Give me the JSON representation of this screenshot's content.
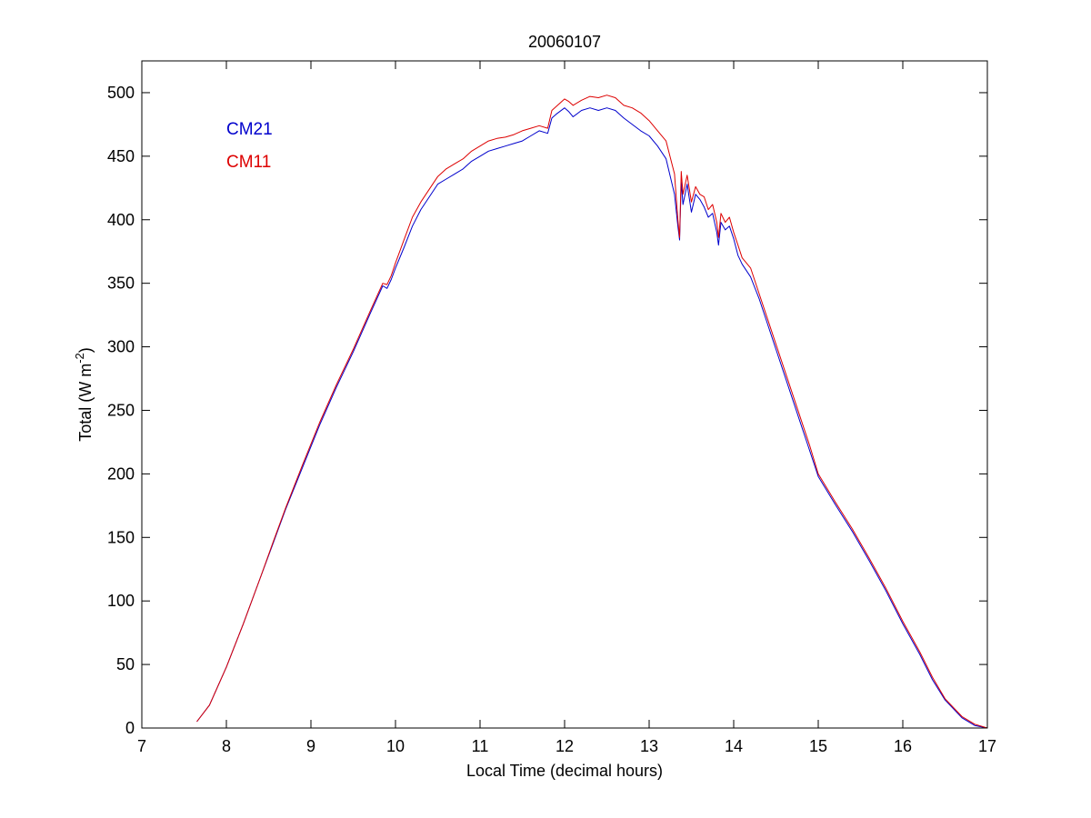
{
  "chart_data": {
    "type": "line",
    "title": "20060107",
    "xlabel": "Local Time (decimal hours)",
    "ylabel": "Total (W m",
    "ylabel_superscript": "-2",
    "ylabel_suffix": ")",
    "xlim": [
      7,
      17
    ],
    "ylim": [
      0,
      525
    ],
    "xticks": [
      7,
      8,
      9,
      10,
      11,
      12,
      13,
      14,
      15,
      16,
      17
    ],
    "yticks": [
      0,
      50,
      100,
      150,
      200,
      250,
      300,
      350,
      400,
      450,
      500
    ],
    "grid": false,
    "legend_position": "top-left",
    "series": [
      {
        "name": "CM21",
        "color": "#0000cc",
        "x": [
          7.65,
          7.8,
          8.0,
          8.2,
          8.4,
          8.55,
          8.7,
          8.9,
          9.1,
          9.3,
          9.5,
          9.7,
          9.85,
          9.9,
          9.95,
          10.0,
          10.1,
          10.2,
          10.3,
          10.4,
          10.5,
          10.6,
          10.7,
          10.8,
          10.9,
          11.0,
          11.1,
          11.2,
          11.3,
          11.4,
          11.5,
          11.6,
          11.7,
          11.8,
          11.85,
          11.9,
          12.0,
          12.05,
          12.1,
          12.2,
          12.3,
          12.4,
          12.5,
          12.6,
          12.7,
          12.8,
          12.9,
          13.0,
          13.1,
          13.2,
          13.3,
          13.34,
          13.36,
          13.38,
          13.4,
          13.45,
          13.5,
          13.55,
          13.6,
          13.65,
          13.7,
          13.75,
          13.8,
          13.82,
          13.85,
          13.9,
          13.95,
          14.0,
          14.05,
          14.1,
          14.2,
          14.3,
          14.4,
          14.5,
          14.6,
          14.7,
          14.8,
          14.9,
          15.0,
          15.2,
          15.4,
          15.6,
          15.8,
          16.0,
          16.2,
          16.35,
          16.5,
          16.7,
          16.85,
          17.0
        ],
        "y": [
          5,
          18,
          48,
          82,
          118,
          145,
          172,
          205,
          238,
          268,
          296,
          326,
          348,
          346,
          353,
          362,
          378,
          395,
          408,
          418,
          428,
          432,
          436,
          440,
          446,
          450,
          454,
          456,
          458,
          460,
          462,
          466,
          470,
          468,
          480,
          483,
          488,
          485,
          481,
          486,
          488,
          486,
          488,
          486,
          480,
          475,
          470,
          466,
          458,
          448,
          420,
          395,
          384,
          430,
          412,
          428,
          406,
          420,
          416,
          410,
          402,
          405,
          390,
          380,
          398,
          392,
          395,
          385,
          372,
          365,
          355,
          338,
          318,
          298,
          278,
          258,
          238,
          218,
          198,
          176,
          155,
          132,
          108,
          82,
          58,
          38,
          22,
          8,
          2,
          0
        ]
      },
      {
        "name": "CM11",
        "color": "#dd0000",
        "x": [
          7.65,
          7.8,
          8.0,
          8.2,
          8.4,
          8.55,
          8.7,
          8.9,
          9.1,
          9.3,
          9.5,
          9.7,
          9.85,
          9.9,
          9.95,
          10.0,
          10.1,
          10.2,
          10.3,
          10.4,
          10.5,
          10.6,
          10.7,
          10.8,
          10.9,
          11.0,
          11.1,
          11.2,
          11.3,
          11.4,
          11.5,
          11.6,
          11.7,
          11.8,
          11.85,
          11.9,
          12.0,
          12.05,
          12.1,
          12.2,
          12.3,
          12.4,
          12.5,
          12.6,
          12.7,
          12.8,
          12.9,
          13.0,
          13.1,
          13.2,
          13.3,
          13.34,
          13.36,
          13.38,
          13.4,
          13.45,
          13.5,
          13.55,
          13.6,
          13.65,
          13.7,
          13.75,
          13.8,
          13.82,
          13.85,
          13.9,
          13.95,
          14.0,
          14.05,
          14.1,
          14.2,
          14.3,
          14.4,
          14.5,
          14.6,
          14.7,
          14.8,
          14.9,
          15.0,
          15.2,
          15.4,
          15.6,
          15.8,
          16.0,
          16.2,
          16.35,
          16.5,
          16.7,
          16.85,
          17.0
        ],
        "y": [
          5,
          18,
          48,
          82,
          118,
          146,
          173,
          207,
          240,
          270,
          298,
          328,
          350,
          349,
          356,
          366,
          384,
          402,
          414,
          424,
          434,
          440,
          444,
          448,
          454,
          458,
          462,
          464,
          465,
          467,
          470,
          472,
          474,
          472,
          486,
          489,
          495,
          493,
          490,
          494,
          497,
          496,
          498,
          496,
          490,
          488,
          484,
          478,
          470,
          462,
          436,
          400,
          386,
          438,
          420,
          435,
          414,
          426,
          420,
          418,
          408,
          412,
          398,
          386,
          405,
          398,
          402,
          390,
          380,
          370,
          362,
          342,
          322,
          302,
          282,
          262,
          242,
          222,
          200,
          178,
          157,
          134,
          110,
          84,
          60,
          40,
          23,
          9,
          3,
          0
        ]
      }
    ]
  }
}
